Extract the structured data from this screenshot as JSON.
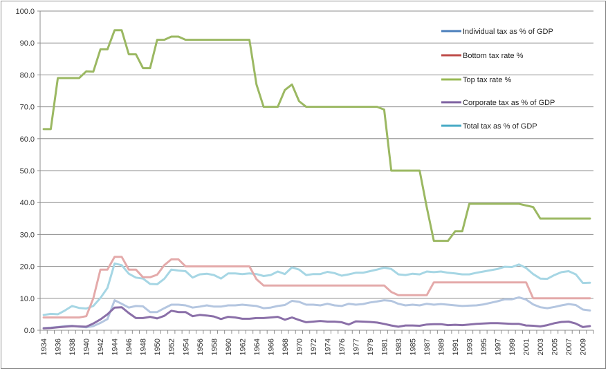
{
  "chart_data": {
    "type": "line",
    "title": "",
    "xlabel": "",
    "ylabel": "",
    "ylim": [
      0,
      100
    ],
    "yticks": [
      "0.0",
      "10.0",
      "20.0",
      "30.0",
      "40.0",
      "50.0",
      "60.0",
      "70.0",
      "80.0",
      "90.0",
      "100.0"
    ],
    "grid": "horizontal",
    "legend_position": "top-right",
    "categories": [
      "1934",
      "1935",
      "1936",
      "1937",
      "1938",
      "1939",
      "1940",
      "1941",
      "1942",
      "1943",
      "1944",
      "1945",
      "1946",
      "1947",
      "1948",
      "1949",
      "1950",
      "1951",
      "1952",
      "1953",
      "1954",
      "1955",
      "1956",
      "1957",
      "1958",
      "1959",
      "1960",
      "1961",
      "1962",
      "1963",
      "1964",
      "1965",
      "1966",
      "1967",
      "1968",
      "1969",
      "1970",
      "1971",
      "1972",
      "1973",
      "1974",
      "1975",
      "1976",
      "TQ",
      "1977",
      "1978",
      "1979",
      "1980",
      "1981",
      "1982",
      "1983",
      "1984",
      "1985",
      "1986",
      "1987",
      "1988",
      "1989",
      "1990",
      "1991",
      "1992",
      "1993",
      "1994",
      "1995",
      "1996",
      "1997",
      "1998",
      "1999",
      "2000",
      "2001",
      "2002",
      "2003",
      "2004",
      "2005",
      "2006",
      "2007",
      "2008",
      "2009",
      "2010"
    ],
    "series": [
      {
        "name": "Individual tax as % of GDP",
        "color": "#4a7ebb",
        "line_color": "#b4c6e0",
        "values": [
          0.7,
          0.8,
          1.0,
          1.3,
          1.4,
          1.1,
          0.9,
          1.3,
          2.3,
          3.5,
          9.4,
          8.3,
          7.1,
          7.6,
          7.5,
          5.7,
          5.7,
          6.9,
          8.0,
          8.0,
          7.8,
          7.1,
          7.4,
          7.8,
          7.4,
          7.4,
          7.8,
          7.8,
          8.0,
          7.8,
          7.6,
          6.9,
          7.1,
          7.6,
          7.9,
          9.2,
          8.9,
          8.0,
          8.0,
          7.8,
          8.3,
          7.8,
          7.6,
          8.3,
          8.0,
          8.2,
          8.7,
          9.0,
          9.4,
          9.2,
          8.3,
          7.8,
          8.0,
          7.8,
          8.3,
          8.0,
          8.2,
          8.0,
          7.8,
          7.6,
          7.7,
          7.8,
          8.1,
          8.6,
          9.1,
          9.7,
          9.7,
          10.3,
          9.6,
          8.1,
          7.2,
          6.9,
          7.3,
          7.8,
          8.2,
          7.9,
          6.5,
          6.2
        ]
      },
      {
        "name": "Bottom tax rate %",
        "color": "#be4b48",
        "line_color": "#e4aaaa",
        "values": [
          4,
          4,
          4,
          4,
          4,
          4,
          4.4,
          10,
          19,
          19,
          23,
          23,
          19,
          19,
          16.6,
          16.6,
          17.4,
          20.4,
          22.2,
          22.2,
          20,
          20,
          20,
          20,
          20,
          20,
          20,
          20,
          20,
          20,
          16,
          14,
          14,
          14,
          14,
          14,
          14,
          14,
          14,
          14,
          14,
          14,
          14,
          14,
          14,
          14,
          14,
          14,
          14,
          12,
          11,
          11,
          11,
          11,
          11,
          15,
          15,
          15,
          15,
          15,
          15,
          15,
          15,
          15,
          15,
          15,
          15,
          15,
          15,
          10,
          10,
          10,
          10,
          10,
          10,
          10,
          10,
          10
        ]
      },
      {
        "name": "Top tax rate %",
        "color": "#98b954",
        "line_color": "#9bb862",
        "values": [
          63,
          63,
          79,
          79,
          79,
          79,
          81.1,
          81,
          88,
          88,
          94,
          94,
          86.45,
          86.45,
          82.13,
          82.13,
          91,
          91,
          92,
          92,
          91,
          91,
          91,
          91,
          91,
          91,
          91,
          91,
          91,
          91,
          77,
          70,
          70,
          70,
          75.25,
          77,
          71.75,
          70,
          70,
          70,
          70,
          70,
          70,
          70,
          70,
          70,
          70,
          70,
          69.13,
          50,
          50,
          50,
          50,
          50,
          38.5,
          28,
          28,
          28,
          31,
          31,
          39.6,
          39.6,
          39.6,
          39.6,
          39.6,
          39.6,
          39.6,
          39.6,
          39.1,
          38.6,
          35,
          35,
          35,
          35,
          35,
          35,
          35,
          35
        ]
      },
      {
        "name": "Corporate tax as % of GDP",
        "color": "#7d60a0",
        "line_color": "#8a6fa8",
        "values": [
          0.6,
          0.7,
          0.9,
          1.1,
          1.3,
          1.2,
          1.1,
          2.1,
          3.4,
          5.0,
          7.1,
          7.2,
          5.4,
          3.8,
          3.8,
          4.2,
          3.7,
          4.5,
          6.1,
          5.7,
          5.7,
          4.4,
          4.8,
          4.6,
          4.3,
          3.5,
          4.2,
          4.0,
          3.6,
          3.6,
          3.8,
          3.8,
          4.0,
          4.2,
          3.3,
          4.0,
          3.2,
          2.5,
          2.7,
          2.9,
          2.7,
          2.7,
          2.5,
          1.8,
          2.8,
          2.7,
          2.6,
          2.4,
          2.0,
          1.5,
          1.1,
          1.5,
          1.5,
          1.4,
          1.8,
          1.9,
          1.9,
          1.6,
          1.7,
          1.6,
          1.8,
          2.0,
          2.1,
          2.2,
          2.2,
          2.1,
          2.0,
          2.0,
          1.5,
          1.4,
          1.2,
          1.6,
          2.2,
          2.6,
          2.7,
          2.1,
          1.0,
          1.3
        ]
      },
      {
        "name": "Total tax as % of GDP",
        "color": "#46aac5",
        "line_color": "#a6d6e4",
        "values": [
          4.8,
          5.1,
          5.0,
          6.2,
          7.6,
          7.0,
          6.8,
          7.6,
          10.1,
          13.3,
          20.9,
          20.4,
          17.7,
          16.5,
          16.2,
          14.5,
          14.4,
          16.1,
          19.0,
          18.7,
          18.5,
          16.5,
          17.5,
          17.7,
          17.3,
          16.2,
          17.8,
          17.8,
          17.6,
          17.8,
          17.6,
          17.0,
          17.3,
          18.4,
          17.6,
          19.7,
          19.0,
          17.3,
          17.6,
          17.6,
          18.3,
          17.9,
          17.1,
          17.5,
          18.0,
          18.0,
          18.5,
          19.0,
          19.6,
          19.2,
          17.5,
          17.3,
          17.7,
          17.5,
          18.4,
          18.2,
          18.4,
          18.0,
          17.8,
          17.5,
          17.5,
          18.0,
          18.4,
          18.8,
          19.2,
          19.9,
          19.8,
          20.6,
          19.5,
          17.6,
          16.2,
          16.1,
          17.3,
          18.2,
          18.5,
          17.5,
          14.8,
          14.9
        ]
      }
    ]
  }
}
